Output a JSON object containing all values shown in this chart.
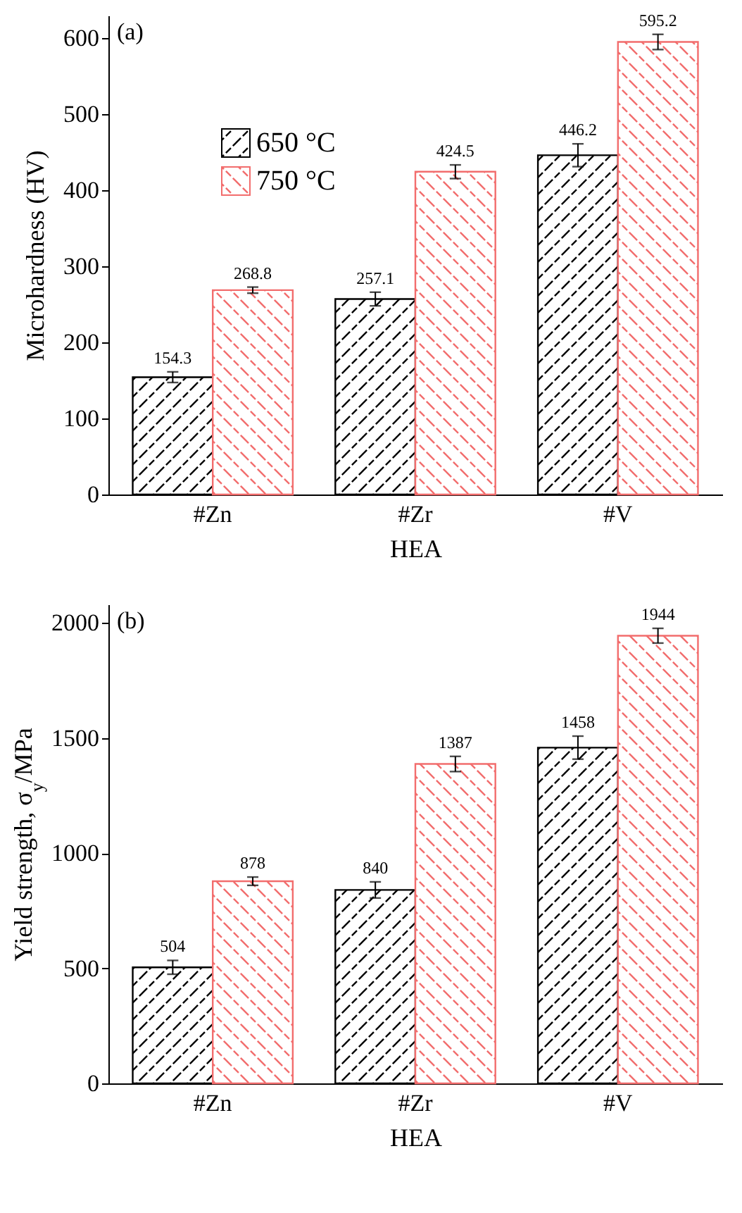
{
  "chart_data": [
    {
      "type": "bar",
      "title": "(a)",
      "xlabel": "HEA",
      "ylabel": "Microhardness (HV)",
      "categories": [
        "#Zn",
        "#Zr",
        "#V"
      ],
      "ylim": [
        0,
        630
      ],
      "yticks": [
        0,
        100,
        200,
        300,
        400,
        500,
        600
      ],
      "legend": "top left",
      "data_labels": true,
      "grid": false,
      "series": [
        {
          "name": "650 °C",
          "color": "#000000",
          "values": [
            154.3,
            257.1,
            446.2
          ],
          "errors": [
            7,
            9,
            15
          ]
        },
        {
          "name": "750 °C",
          "color": "#f26d6d",
          "values": [
            268.8,
            424.5,
            595.2
          ],
          "errors": [
            4,
            9,
            10
          ]
        }
      ]
    },
    {
      "type": "bar",
      "title": "(b)",
      "xlabel": "HEA",
      "ylabel": "Yield strength, σ$_{y}$/MPa",
      "categories": [
        "#Zn",
        "#Zr",
        "#V"
      ],
      "ylim": [
        0,
        2080
      ],
      "yticks": [
        0,
        500,
        1000,
        1500,
        2000
      ],
      "legend": "top left",
      "data_labels": true,
      "grid": false,
      "series": [
        {
          "name": "650 °C",
          "color": "#000000",
          "values": [
            504,
            840,
            1458
          ],
          "errors": [
            30,
            35,
            50
          ]
        },
        {
          "name": "750 °C",
          "color": "#f26d6d",
          "values": [
            878,
            1387,
            1944
          ],
          "errors": [
            18,
            33,
            32
          ]
        }
      ]
    }
  ]
}
